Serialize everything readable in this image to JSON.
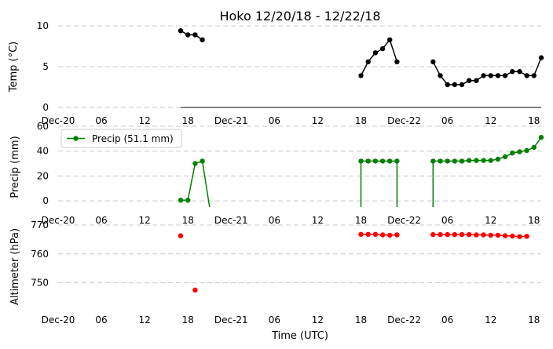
{
  "chart_data": {
    "type": "line",
    "title": "Hoko 12/20/18 - 12/22/18",
    "xlabel": "Time (UTC)",
    "x_tick_labels": [
      "Dec-20",
      "06",
      "12",
      "18",
      "Dec-21",
      "06",
      "12",
      "18",
      "Dec-22",
      "06",
      "12",
      "18"
    ],
    "x_tick_hours": [
      0,
      6,
      12,
      18,
      24,
      30,
      36,
      42,
      48,
      54,
      60,
      66
    ],
    "xlim_hours": [
      0,
      67
    ],
    "grid": true,
    "panels": [
      {
        "ylabel": "Temp (°C)",
        "ylim": [
          0,
          10
        ],
        "yticks": [
          "0",
          "5",
          "10"
        ],
        "series": [
          {
            "color": "#000000",
            "segments": [
              {
                "x": [
                  17,
                  18,
                  19,
                  20
                ],
                "y": [
                  9.4,
                  8.9,
                  8.9,
                  8.3
                ]
              },
              {
                "x": [
                  42,
                  43,
                  44,
                  45,
                  46,
                  47
                ],
                "y": [
                  3.9,
                  5.6,
                  6.7,
                  7.2,
                  8.3,
                  5.6
                ]
              },
              {
                "x": [
                  52,
                  53,
                  54,
                  55,
                  56,
                  57,
                  58,
                  59,
                  60,
                  61,
                  62,
                  63,
                  64,
                  65,
                  66,
                  67
                ],
                "y": [
                  5.6,
                  3.9,
                  2.8,
                  2.8,
                  2.8,
                  3.3,
                  3.3,
                  3.9,
                  3.9,
                  3.9,
                  3.9,
                  4.4,
                  4.4,
                  3.9,
                  3.9,
                  6.1
                ]
              }
            ]
          }
        ]
      },
      {
        "ylabel": "Precip (mm)",
        "ylim": [
          -5,
          60
        ],
        "yticks": [
          "0",
          "20",
          "40",
          "60"
        ],
        "legend": {
          "label": "Precip (51.1 mm)",
          "position": "upper-left"
        },
        "series": [
          {
            "color": "#008000",
            "segments": [
              {
                "x": [
                  17,
                  18,
                  19,
                  20,
                  21
                ],
                "y": [
                  0.5,
                  0.5,
                  30,
                  32,
                  -5
                ]
              },
              {
                "x": [
                  42,
                  42,
                  43,
                  44,
                  45,
                  46,
                  47,
                  47
                ],
                "y": [
                  -5,
                  32,
                  32,
                  32,
                  32,
                  32,
                  32,
                  -5
                ]
              },
              {
                "x": [
                  52,
                  52,
                  53,
                  54,
                  55,
                  56,
                  57,
                  58,
                  59,
                  60,
                  61,
                  62,
                  63,
                  64,
                  65,
                  66,
                  67
                ],
                "y": [
                  -5,
                  32,
                  32,
                  32,
                  32,
                  32,
                  32.5,
                  32.5,
                  32.5,
                  32.5,
                  33.5,
                  35.5,
                  38.5,
                  39.5,
                  40.5,
                  43,
                  51.1
                ]
              }
            ]
          }
        ]
      },
      {
        "ylabel": "Altimeter (hPa)",
        "ylim": [
          742,
          770
        ],
        "yticks": [
          "750",
          "760",
          "770"
        ],
        "series": [
          {
            "color": "#ff0000",
            "segments": [
              {
                "x": [
                  17
                ],
                "y": [
                  766.3
                ]
              },
              {
                "x": [
                  19
                ],
                "y": [
                  747.5
                ]
              },
              {
                "x": [
                  42,
                  43,
                  44,
                  45,
                  46,
                  47
                ],
                "y": [
                  766.8,
                  766.8,
                  766.8,
                  766.6,
                  766.5,
                  766.6
                ]
              },
              {
                "x": [
                  52,
                  53,
                  54,
                  55,
                  56,
                  57,
                  58,
                  59,
                  60,
                  61,
                  62,
                  63,
                  64,
                  65
                ],
                "y": [
                  766.7,
                  766.7,
                  766.7,
                  766.7,
                  766.7,
                  766.7,
                  766.6,
                  766.6,
                  766.5,
                  766.5,
                  766.3,
                  766.2,
                  766.0,
                  766.1
                ]
              }
            ]
          }
        ]
      }
    ]
  }
}
